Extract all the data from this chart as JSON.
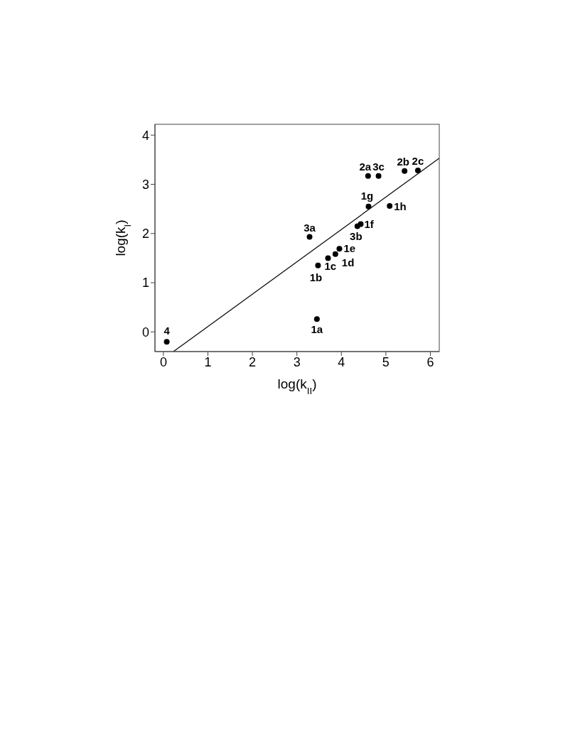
{
  "chart_data": {
    "type": "scatter",
    "xlabel": "log(k$_{II}$)",
    "ylabel": "log(k$_{I}$)",
    "xlim": [
      -0.19,
      6.2
    ],
    "ylim": [
      -0.4,
      4.22
    ],
    "xticks": [
      0,
      1,
      2,
      3,
      4,
      5,
      6
    ],
    "yticks": [
      0,
      1,
      2,
      3,
      4
    ],
    "grid": false,
    "legend": false,
    "marker": "circle",
    "series": [
      {
        "color": "#000000",
        "x": [
          0.075,
          3.45,
          3.475,
          3.7,
          3.865,
          3.955,
          4.36,
          4.435,
          3.285,
          4.61,
          5.085,
          4.6,
          4.835,
          5.42,
          5.72
        ],
        "values": [
          -0.2,
          0.26,
          1.35,
          1.5,
          1.58,
          1.69,
          2.15,
          2.19,
          1.93,
          2.55,
          2.56,
          3.17,
          3.17,
          3.27,
          3.28
        ]
      },
      {
        "type": "line",
        "color": "#000000",
        "line_style": "solid",
        "marker": "none",
        "x": [
          0.225,
          6.2
        ],
        "values": [
          -0.4,
          3.53
        ]
      }
    ],
    "annotations": [
      {
        "text": "4",
        "x": 0.075,
        "y": -0.2
      },
      {
        "text": "1a",
        "x": 3.45,
        "y": 0.26
      },
      {
        "text": "1b",
        "x": 3.475,
        "y": 1.35
      },
      {
        "text": "1c",
        "x": 3.7,
        "y": 1.5
      },
      {
        "text": "1d",
        "x": 3.865,
        "y": 1.58
      },
      {
        "text": "1e",
        "x": 3.955,
        "y": 1.69
      },
      {
        "text": "3b",
        "x": 4.36,
        "y": 2.15
      },
      {
        "text": "1f",
        "x": 4.435,
        "y": 2.19
      },
      {
        "text": "3a",
        "x": 3.285,
        "y": 1.93
      },
      {
        "text": "1g",
        "x": 4.61,
        "y": 2.55
      },
      {
        "text": "1h",
        "x": 5.085,
        "y": 2.56
      },
      {
        "text": "2a",
        "x": 4.6,
        "y": 3.17
      },
      {
        "text": "3c",
        "x": 4.835,
        "y": 3.17
      },
      {
        "text": "2b",
        "x": 5.42,
        "y": 3.27
      },
      {
        "text": "2c",
        "x": 5.72,
        "y": 3.28
      }
    ]
  }
}
